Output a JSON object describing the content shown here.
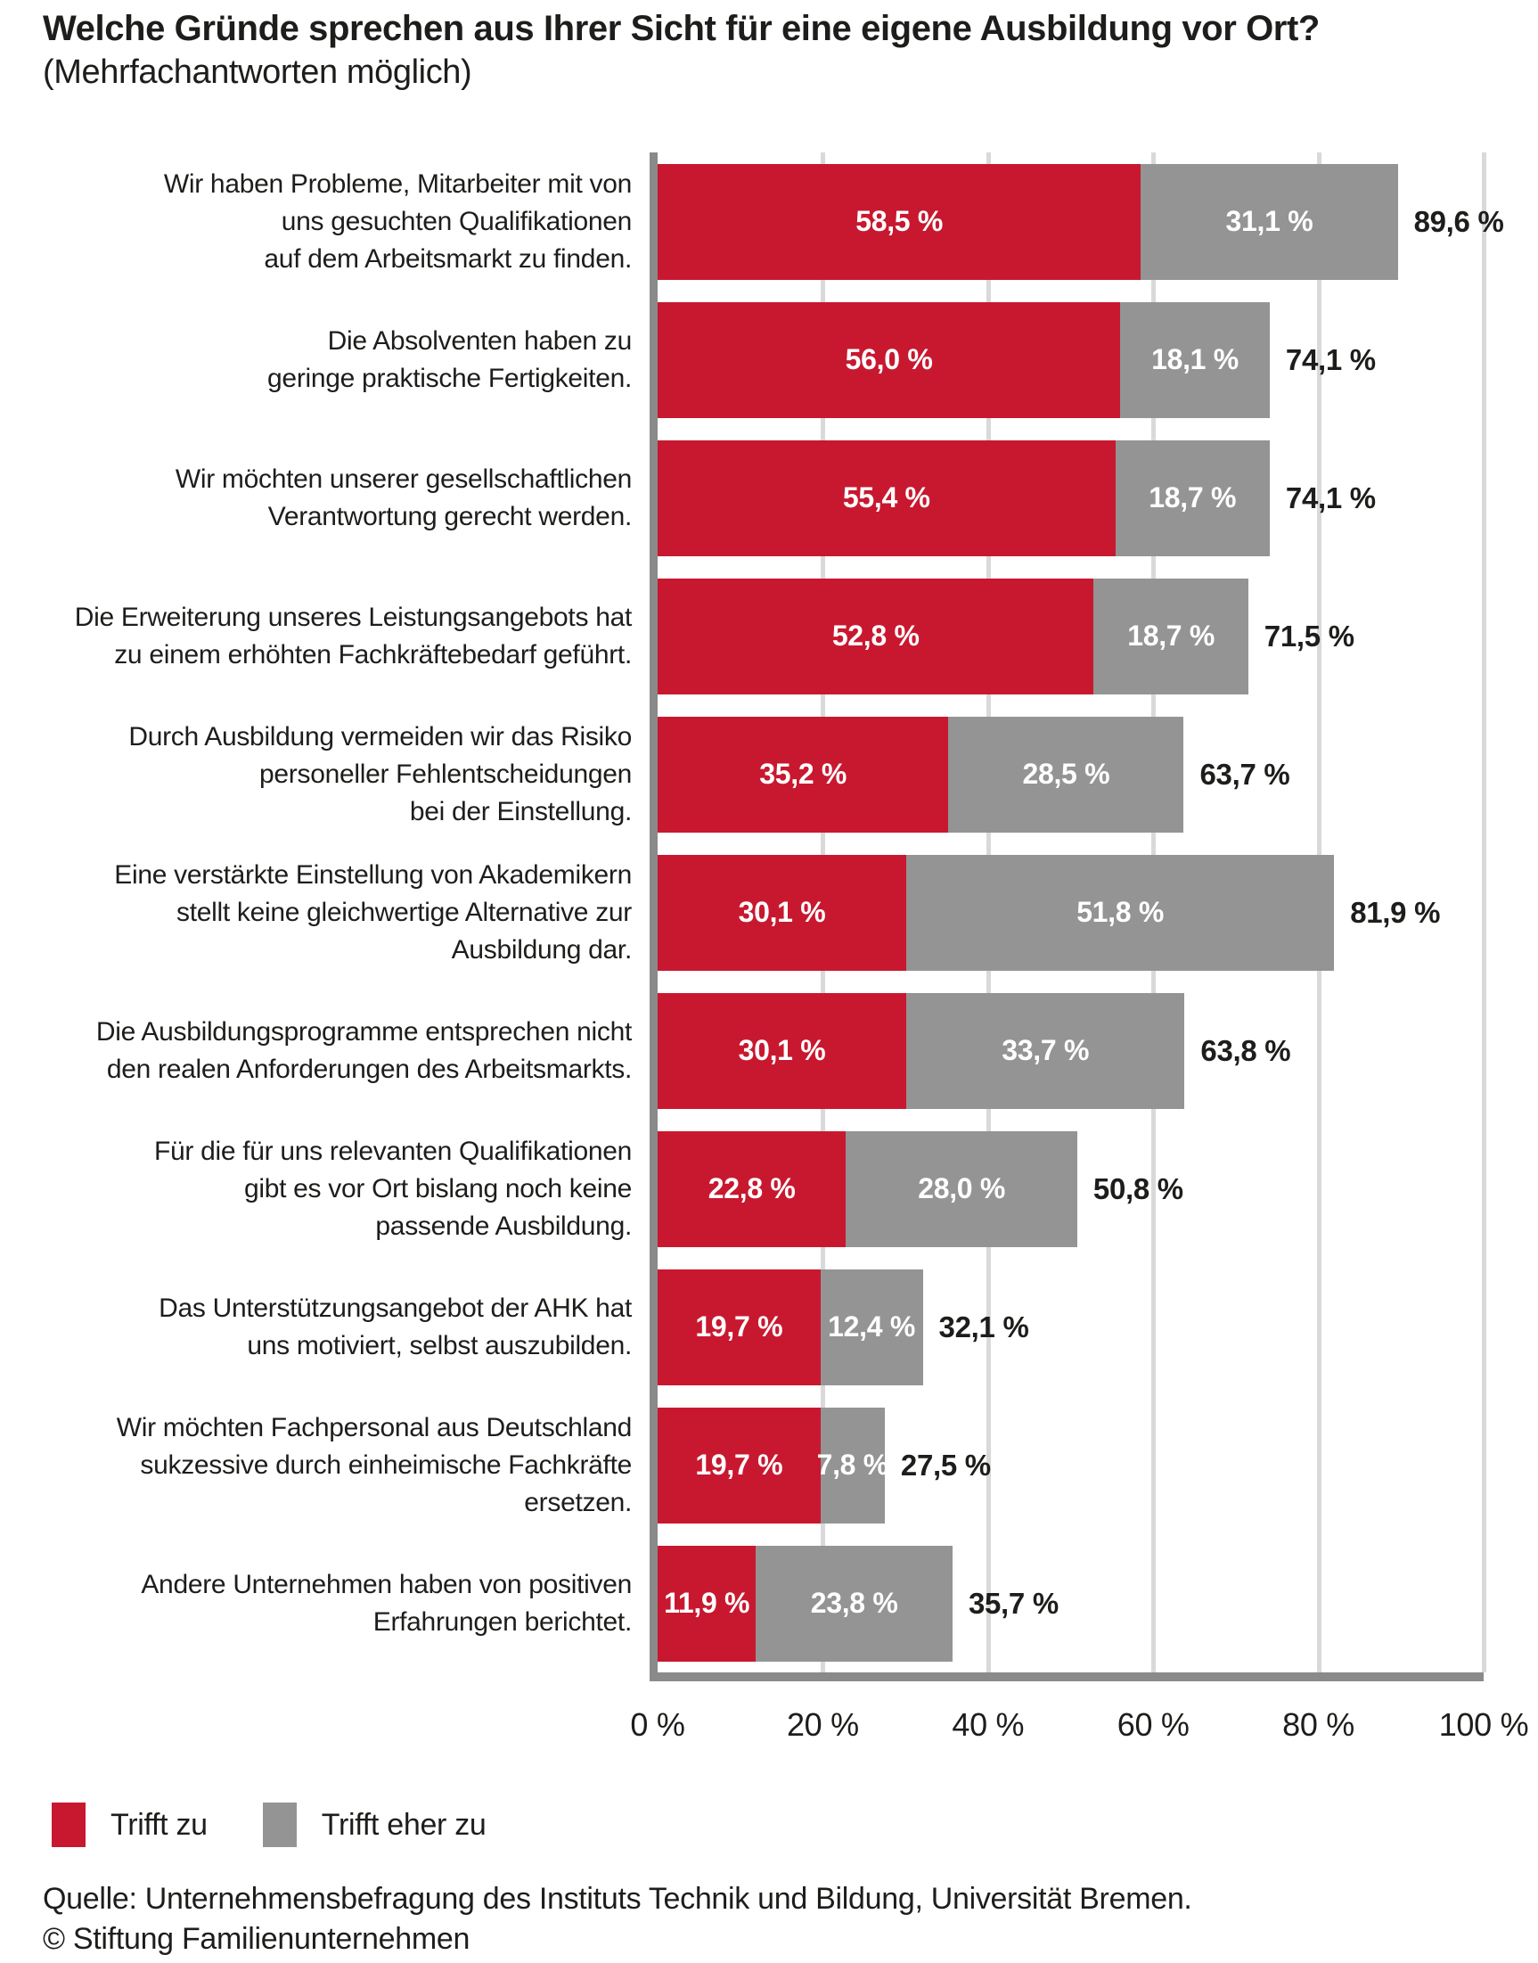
{
  "title": "Welche Gründe sprechen aus Ihrer Sicht für eine eigene Ausbildung vor Ort?",
  "subtitle": "(Mehrfachantworten möglich)",
  "colors": {
    "trifft_zu": "#C8182F",
    "trifft_eher_zu": "#949494",
    "axis": "#8A8A8A",
    "gridline": "#D9D9D9",
    "text": "#1D1D1B"
  },
  "chart_data": {
    "type": "bar",
    "orientation": "horizontal",
    "stacked": true,
    "xlim": [
      0,
      100
    ],
    "grid": true,
    "x_ticks": [
      "0 %",
      "20 %",
      "40 %",
      "60 %",
      "80 %",
      "100 %"
    ],
    "legend_position": "bottom-left",
    "legend": [
      {
        "name": "Trifft zu",
        "color": "#C8182F"
      },
      {
        "name": "Trifft eher zu",
        "color": "#949494"
      }
    ],
    "rows": [
      {
        "category": "Wir haben Probleme, Mitarbeiter mit von\nuns gesuchten Qualifikationen\nauf dem Arbeitsmarkt zu finden.",
        "trifft_zu": 58.5,
        "trifft_eher_zu": 31.1,
        "total": 89.6,
        "trifft_zu_label": "58,5 %",
        "trifft_eher_zu_label": "31,1 %",
        "total_label": "89,6 %"
      },
      {
        "category": "Die Absolventen haben zu\ngeringe praktische Fertigkeiten.",
        "trifft_zu": 56.0,
        "trifft_eher_zu": 18.1,
        "total": 74.1,
        "trifft_zu_label": "56,0 %",
        "trifft_eher_zu_label": "18,1 %",
        "total_label": "74,1 %"
      },
      {
        "category": "Wir möchten unserer gesellschaftlichen\nVerantwortung gerecht werden.",
        "trifft_zu": 55.4,
        "trifft_eher_zu": 18.7,
        "total": 74.1,
        "trifft_zu_label": "55,4 %",
        "trifft_eher_zu_label": "18,7 %",
        "total_label": "74,1 %"
      },
      {
        "category": "Die Erweiterung unseres Leistungsangebots hat\nzu einem erhöhten Fachkräftebedarf geführt.",
        "trifft_zu": 52.8,
        "trifft_eher_zu": 18.7,
        "total": 71.5,
        "trifft_zu_label": "52,8 %",
        "trifft_eher_zu_label": "18,7 %",
        "total_label": "71,5 %"
      },
      {
        "category": "Durch Ausbildung vermeiden wir das Risiko\npersoneller Fehlentscheidungen\nbei der Einstellung.",
        "trifft_zu": 35.2,
        "trifft_eher_zu": 28.5,
        "total": 63.7,
        "trifft_zu_label": "35,2 %",
        "trifft_eher_zu_label": "28,5 %",
        "total_label": "63,7 %"
      },
      {
        "category": "Eine verstärkte Einstellung von Akademikern\nstellt keine gleichwertige Alternative zur\nAusbildung dar.",
        "trifft_zu": 30.1,
        "trifft_eher_zu": 51.8,
        "total": 81.9,
        "trifft_zu_label": "30,1 %",
        "trifft_eher_zu_label": "51,8 %",
        "total_label": "81,9 %"
      },
      {
        "category": "Die Ausbildungsprogramme entsprechen nicht\nden realen Anforderungen des Arbeitsmarkts.",
        "trifft_zu": 30.1,
        "trifft_eher_zu": 33.7,
        "total": 63.8,
        "trifft_zu_label": "30,1 %",
        "trifft_eher_zu_label": "33,7 %",
        "total_label": "63,8 %"
      },
      {
        "category": "Für die für uns relevanten Qualifikationen\ngibt es vor Ort bislang noch keine\npassende Ausbildung.",
        "trifft_zu": 22.8,
        "trifft_eher_zu": 28.0,
        "total": 50.8,
        "trifft_zu_label": "22,8 %",
        "trifft_eher_zu_label": "28,0 %",
        "total_label": "50,8 %"
      },
      {
        "category": "Das Unterstützungsangebot der AHK hat\nuns motiviert, selbst auszubilden.",
        "trifft_zu": 19.7,
        "trifft_eher_zu": 12.4,
        "total": 32.1,
        "trifft_zu_label": "19,7 %",
        "trifft_eher_zu_label": "12,4 %",
        "total_label": "32,1 %"
      },
      {
        "category": "Wir möchten Fachpersonal aus Deutschland\nsukzessive durch einheimische Fachkräfte\nersetzen.",
        "trifft_zu": 19.7,
        "trifft_eher_zu": 7.8,
        "total": 27.5,
        "trifft_zu_label": "19,7 %",
        "trifft_eher_zu_label": "7,8 %",
        "total_label": "27,5 %"
      },
      {
        "category": "Andere Unternehmen haben von positiven\nErfahrungen berichtet.",
        "trifft_zu": 11.9,
        "trifft_eher_zu": 23.8,
        "total": 35.7,
        "trifft_zu_label": "11,9 %",
        "trifft_eher_zu_label": "23,8 %",
        "total_label": "35,7 %"
      }
    ]
  },
  "footer": {
    "source": "Quelle: Unternehmensbefragung des Instituts Technik und Bildung, Universität Bremen.",
    "copyright": "© Stiftung Familienunternehmen"
  }
}
